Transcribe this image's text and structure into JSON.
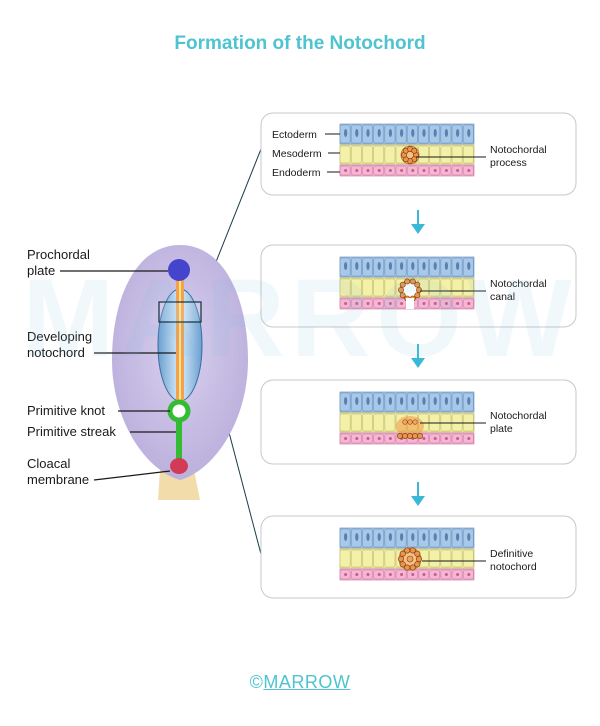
{
  "title": "Formation of the Notochord",
  "watermark": "MARROW",
  "brand": {
    "symbol": "©",
    "name": "MARROW"
  },
  "colors": {
    "title": "#4fc3cf",
    "ectoderm": "#a8c8e8",
    "mesoderm": "#f3f0a8",
    "endoderm": "#f4b6d2",
    "notochord_cells": "#e8984a",
    "prochordal_plate": "#4444cc",
    "primitive_knot": "#33bb33",
    "cloacal_membrane": "#d33a55",
    "embryo_disc": "#c9c0e3",
    "arrow": "#3ab8d8"
  },
  "embryo_labels": {
    "prochordal_plate": [
      "Prochordal",
      "plate"
    ],
    "developing_notochord": [
      "Developing",
      "notochord"
    ],
    "primitive_knot": "Primitive knot",
    "primitive_streak": "Primitive streak",
    "cloacal_membrane": [
      "Cloacal",
      "membrane"
    ]
  },
  "stages": [
    {
      "name": "notochordal-process",
      "label": [
        "Notochordal",
        "process"
      ],
      "layer_labels": [
        "Ectoderm",
        "Mesoderm",
        "Endoderm"
      ]
    },
    {
      "name": "notochordal-canal",
      "label": [
        "Notochordal",
        "canal"
      ]
    },
    {
      "name": "notochordal-plate",
      "label": [
        "Notochordal",
        "plate"
      ]
    },
    {
      "name": "definitive-notochord",
      "label": [
        "Definitive",
        "notochord"
      ]
    }
  ]
}
